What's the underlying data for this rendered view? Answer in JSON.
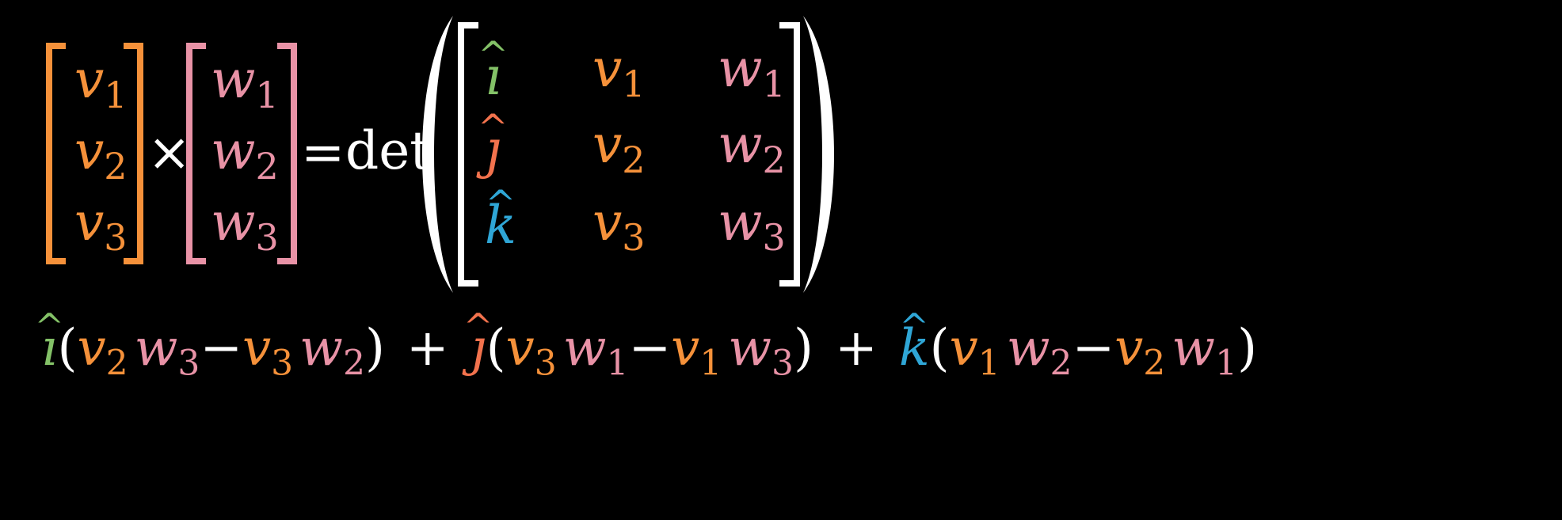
{
  "colors": {
    "v": "#f5913a",
    "w": "#e892a6",
    "i": "#83c167",
    "j": "#f2724d",
    "k": "#2fa6d6",
    "white": "#ffffff"
  },
  "top": {
    "v_vector": [
      {
        "sym": "v",
        "sub": "1"
      },
      {
        "sym": "v",
        "sub": "2"
      },
      {
        "sym": "v",
        "sub": "3"
      }
    ],
    "times": "×",
    "w_vector": [
      {
        "sym": "w",
        "sub": "1"
      },
      {
        "sym": "w",
        "sub": "2"
      },
      {
        "sym": "w",
        "sub": "3"
      }
    ],
    "equals": "=",
    "det": "det",
    "matrix": {
      "basis": [
        "ı",
        "ȷ",
        "k"
      ],
      "v_col": [
        {
          "sym": "v",
          "sub": "1"
        },
        {
          "sym": "v",
          "sub": "2"
        },
        {
          "sym": "v",
          "sub": "3"
        }
      ],
      "w_col": [
        {
          "sym": "w",
          "sub": "1"
        },
        {
          "sym": "w",
          "sub": "2"
        },
        {
          "sym": "w",
          "sub": "3"
        }
      ]
    }
  },
  "bottom": {
    "hat": "^",
    "open": "(",
    "close": ")",
    "minus": "−",
    "plus": "+",
    "terms": [
      {
        "basis": "ı",
        "a": [
          "v",
          "2",
          "w",
          "3"
        ],
        "b": [
          "v",
          "3",
          "w",
          "2"
        ]
      },
      {
        "basis": "ȷ",
        "a": [
          "v",
          "3",
          "w",
          "1"
        ],
        "b": [
          "v",
          "1",
          "w",
          "3"
        ]
      },
      {
        "basis": "k",
        "a": [
          "v",
          "1",
          "w",
          "2"
        ],
        "b": [
          "v",
          "2",
          "w",
          "1"
        ]
      }
    ]
  }
}
